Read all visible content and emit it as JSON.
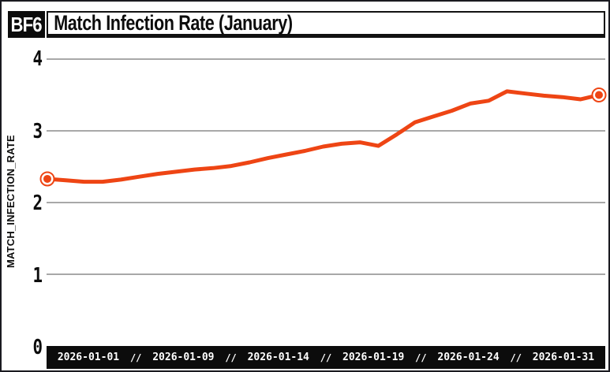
{
  "page": {
    "badge_label": "BF6",
    "title": "Match Infection Rate (January)"
  },
  "chart_data": {
    "type": "line",
    "title": "Match Infection Rate (January)",
    "ylabel": "MATCH_INFECTION_RATE",
    "x": [
      "2026-01-01",
      "2026-01-02",
      "2026-01-03",
      "2026-01-04",
      "2026-01-05",
      "2026-01-06",
      "2026-01-07",
      "2026-01-08",
      "2026-01-09",
      "2026-01-10",
      "2026-01-11",
      "2026-01-12",
      "2026-01-13",
      "2026-01-14",
      "2026-01-15",
      "2026-01-16",
      "2026-01-17",
      "2026-01-18",
      "2026-01-19",
      "2026-01-20",
      "2026-01-21",
      "2026-01-22",
      "2026-01-23",
      "2026-01-24",
      "2026-01-25",
      "2026-01-26",
      "2026-01-27",
      "2026-01-28",
      "2026-01-29",
      "2026-01-30",
      "2026-01-31"
    ],
    "values": [
      2.33,
      2.31,
      2.29,
      2.29,
      2.32,
      2.36,
      2.4,
      2.43,
      2.46,
      2.48,
      2.51,
      2.56,
      2.62,
      2.67,
      2.72,
      2.78,
      2.82,
      2.84,
      2.79,
      2.95,
      3.12,
      3.2,
      3.28,
      3.38,
      3.42,
      3.55,
      3.52,
      3.49,
      3.47,
      3.44,
      3.5
    ],
    "ylim": [
      0,
      4
    ],
    "y_tick_labels": [
      "4",
      "3",
      "2",
      "1",
      "0"
    ],
    "x_tick_labels": [
      "2026-01-01",
      "2026-01-09",
      "2026-01-14",
      "2026-01-19",
      "2026-01-24",
      "2026-01-31"
    ],
    "x_tick_separator": "//",
    "grid": true,
    "legend": false,
    "markers": "endpoints-only",
    "colors": {
      "line": "#ee4514",
      "grid": "#8c8c8c",
      "axis_bar_bg": "#0c0c0c",
      "axis_bar_text": "#ffffff",
      "ink": "#0c0c0c"
    }
  }
}
